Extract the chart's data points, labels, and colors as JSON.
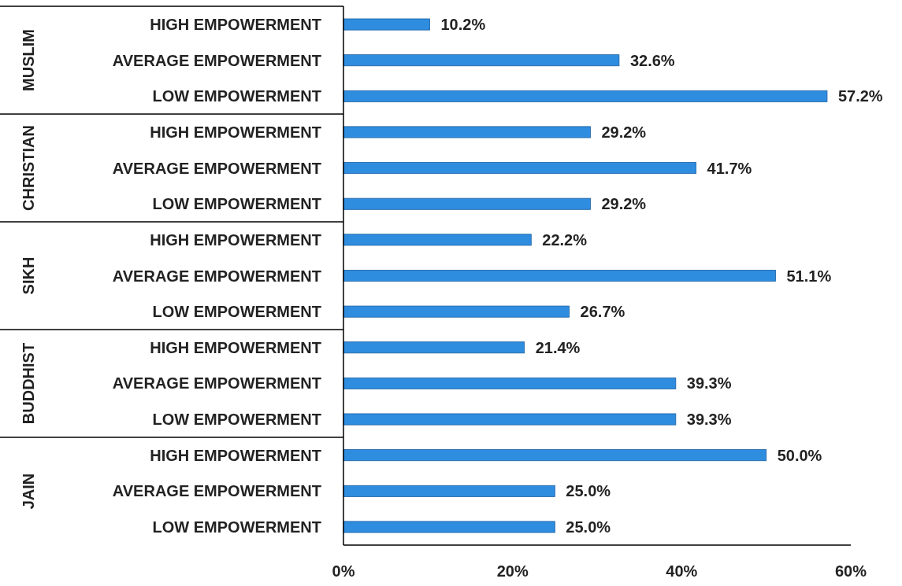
{
  "chart_data": {
    "type": "bar",
    "orientation": "horizontal",
    "categories": [
      "HIGH EMPOWERMENT",
      "AVERAGE EMPOWERMENT",
      "LOW EMPOWERMENT",
      "HIGH EMPOWERMENT",
      "AVERAGE EMPOWERMENT",
      "LOW EMPOWERMENT",
      "HIGH EMPOWERMENT",
      "AVERAGE EMPOWERMENT",
      "LOW EMPOWERMENT",
      "HIGH EMPOWERMENT",
      "AVERAGE EMPOWERMENT",
      "LOW EMPOWERMENT",
      "HIGH EMPOWERMENT",
      "AVERAGE EMPOWERMENT",
      "LOW EMPOWERMENT"
    ],
    "values": [
      10.2,
      32.6,
      57.2,
      29.2,
      41.7,
      29.2,
      22.2,
      51.1,
      26.7,
      21.4,
      39.3,
      39.3,
      50.0,
      25.0,
      25.0
    ],
    "value_labels": [
      "10.2%",
      "32.6%",
      "57.2%",
      "29.2%",
      "41.7%",
      "29.2%",
      "22.2%",
      "51.1%",
      "26.7%",
      "21.4%",
      "39.3%",
      "39.3%",
      "50.0%",
      "25.0%",
      "25.0%"
    ],
    "color": "#2f8de0",
    "xlim": [
      0,
      60
    ],
    "xticks": [
      {
        "value": 0,
        "label": "0%"
      },
      {
        "value": 20,
        "label": "20%"
      },
      {
        "value": 40,
        "label": "40%"
      },
      {
        "value": 60,
        "label": "60%"
      }
    ],
    "annotations": [
      "MUSLIM",
      "CHRISTIAN",
      "SIKH",
      "BUDDHIST",
      "JAIN"
    ],
    "tick_labels": "x"
  }
}
